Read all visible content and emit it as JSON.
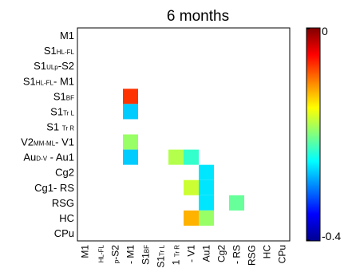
{
  "chart_data": {
    "type": "heatmap",
    "title": "6 months",
    "rows": [
      {
        "label": "M1",
        "parts": [
          {
            "t": "M1",
            "s": 0
          }
        ]
      },
      {
        "label": "S1HL-FL",
        "parts": [
          {
            "t": "S1",
            "s": 0
          },
          {
            "t": "HL-FL",
            "s": 1
          }
        ]
      },
      {
        "label": "S1ULp-S2",
        "parts": [
          {
            "t": "S1",
            "s": 0
          },
          {
            "t": "ULp",
            "s": 1
          },
          {
            "t": "-S2",
            "s": 0
          }
        ]
      },
      {
        "label": "S1HL-FL- M1",
        "parts": [
          {
            "t": "S1",
            "s": 0
          },
          {
            "t": "HL-FL",
            "s": 1
          },
          {
            "t": "- M1",
            "s": 0
          }
        ]
      },
      {
        "label": "S1BF",
        "parts": [
          {
            "t": "S1",
            "s": 0
          },
          {
            "t": "BF",
            "s": 1
          }
        ]
      },
      {
        "label": "S1Tr L",
        "parts": [
          {
            "t": "S1",
            "s": 0
          },
          {
            "t": "Tr L",
            "s": 1
          }
        ]
      },
      {
        "label": "S1 Tr R",
        "parts": [
          {
            "t": "S1 ",
            "s": 0
          },
          {
            "t": "Tr R",
            "s": 1
          }
        ]
      },
      {
        "label": "V2MM-ML- V1",
        "parts": [
          {
            "t": "V2",
            "s": 0
          },
          {
            "t": "MM-ML",
            "s": 1
          },
          {
            "t": "- V1",
            "s": 0
          }
        ]
      },
      {
        "label": "AuD-V - Au1",
        "parts": [
          {
            "t": "Au",
            "s": 0
          },
          {
            "t": "D-V",
            "s": 1
          },
          {
            "t": " - Au1",
            "s": 0
          }
        ]
      },
      {
        "label": "Cg2",
        "parts": [
          {
            "t": "Cg2",
            "s": 0
          }
        ]
      },
      {
        "label": "Cg1- RS",
        "parts": [
          {
            "t": "Cg1- RS",
            "s": 0
          }
        ]
      },
      {
        "label": "RSG",
        "parts": [
          {
            "t": "RSG",
            "s": 0
          }
        ]
      },
      {
        "label": "HC",
        "parts": [
          {
            "t": "HC",
            "s": 0
          }
        ]
      },
      {
        "label": "CPu",
        "parts": [
          {
            "t": "CPu",
            "s": 0
          }
        ]
      }
    ],
    "columns": [
      {
        "label": "M1",
        "parts": [
          {
            "t": "M1",
            "s": 0
          }
        ]
      },
      {
        "label": "HL-FL",
        "parts": [
          {
            "t": "HL-FL",
            "s": 1
          }
        ]
      },
      {
        "label": "p-S2",
        "parts": [
          {
            "t": "p",
            "s": 1
          },
          {
            "t": "-S2",
            "s": 0
          }
        ]
      },
      {
        "label": "- M1",
        "parts": [
          {
            "t": "- M1",
            "s": 0
          }
        ]
      },
      {
        "label": "S1BF",
        "parts": [
          {
            "t": "S1",
            "s": 0
          },
          {
            "t": "BF",
            "s": 1
          }
        ]
      },
      {
        "label": "S1Tr L",
        "parts": [
          {
            "t": "S1",
            "s": 0
          },
          {
            "t": "Tr L",
            "s": 1
          }
        ]
      },
      {
        "label": "1 Tr R",
        "parts": [
          {
            "t": "1 ",
            "s": 0
          },
          {
            "t": "Tr R",
            "s": 1
          }
        ]
      },
      {
        "label": "- V1",
        "parts": [
          {
            "t": "- V1",
            "s": 0
          }
        ]
      },
      {
        "label": "Au1",
        "parts": [
          {
            "t": "Au1",
            "s": 0
          }
        ]
      },
      {
        "label": "Cg2",
        "parts": [
          {
            "t": "Cg2",
            "s": 0
          }
        ]
      },
      {
        "label": "- RS",
        "parts": [
          {
            "t": "- RS",
            "s": 0
          }
        ]
      },
      {
        "label": "RSG",
        "parts": [
          {
            "t": "RSG",
            "s": 0
          }
        ]
      },
      {
        "label": "HC",
        "parts": [
          {
            "t": "HC",
            "s": 0
          }
        ]
      },
      {
        "label": "CPu",
        "parts": [
          {
            "t": "CPu",
            "s": 0
          }
        ]
      }
    ],
    "cells": [
      {
        "row": 4,
        "col": 3,
        "value": -0.07
      },
      {
        "row": 5,
        "col": 3,
        "value": -0.27
      },
      {
        "row": 7,
        "col": 3,
        "value": -0.19
      },
      {
        "row": 8,
        "col": 3,
        "value": -0.27
      },
      {
        "row": 8,
        "col": 6,
        "value": -0.18
      },
      {
        "row": 8,
        "col": 7,
        "value": -0.23
      },
      {
        "row": 9,
        "col": 8,
        "value": -0.26
      },
      {
        "row": 10,
        "col": 7,
        "value": -0.17
      },
      {
        "row": 10,
        "col": 8,
        "value": -0.26
      },
      {
        "row": 11,
        "col": 8,
        "value": -0.26
      },
      {
        "row": 11,
        "col": 10,
        "value": -0.21
      },
      {
        "row": 12,
        "col": 7,
        "value": -0.12
      },
      {
        "row": 12,
        "col": 8,
        "value": -0.19
      }
    ],
    "colorbar": {
      "min": -0.4,
      "max": 0,
      "min_label": "-0.4",
      "max_label": "0",
      "colormap": "jet"
    }
  }
}
